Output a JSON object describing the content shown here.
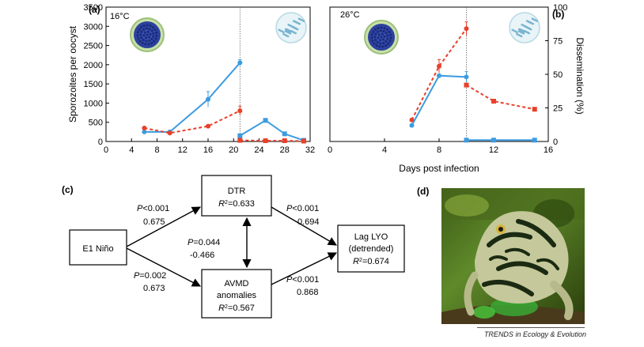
{
  "panel_labels": {
    "a": "(a)",
    "b": "(b)",
    "c": "(c)",
    "d": "(d)"
  },
  "footer": "TRENDS in Ecology & Evolution",
  "chart_data": [
    {
      "type": "line",
      "panel": "a",
      "annotation": "16°C",
      "ylabel": "Sporozoites per oocyst",
      "xlabel": "",
      "xlim": [
        0,
        32
      ],
      "ylim": [
        0,
        3500
      ],
      "xticks": [
        0,
        4,
        8,
        12,
        16,
        20,
        24,
        28,
        32
      ],
      "yticks": [
        0,
        500,
        1000,
        1500,
        2000,
        2500,
        3000,
        3500
      ],
      "vline_x": 21,
      "series": [
        {
          "color": "#3d9be0",
          "dash": false,
          "marker": "circle",
          "x": [
            6,
            10,
            16,
            21
          ],
          "y": [
            250,
            250,
            1100,
            2050
          ],
          "err": [
            0,
            0,
            200,
            80
          ]
        },
        {
          "color": "#3d9be0",
          "dash": false,
          "marker": "square",
          "x": [
            21,
            25,
            28,
            31
          ],
          "y": [
            150,
            550,
            200,
            30
          ],
          "err": [
            0,
            40,
            0,
            0
          ]
        },
        {
          "color": "#e8402b",
          "dash": true,
          "marker": "circle",
          "x": [
            6,
            10,
            16,
            21
          ],
          "y": [
            350,
            220,
            400,
            800
          ],
          "err": [
            0,
            0,
            0,
            120
          ]
        },
        {
          "color": "#e8402b",
          "dash": true,
          "marker": "square",
          "x": [
            21,
            25,
            28,
            31
          ],
          "y": [
            30,
            20,
            20,
            10
          ],
          "err": [
            0,
            0,
            0,
            0
          ]
        }
      ]
    },
    {
      "type": "line",
      "panel": "b",
      "annotation": "26°C",
      "ylabel": "Dissemination (%)",
      "xlabel": "Days post infection",
      "xlim": [
        0,
        16
      ],
      "ylim": [
        0,
        100
      ],
      "xticks": [
        0,
        4,
        8,
        12,
        16
      ],
      "yticks": [
        0,
        25,
        50,
        75,
        100
      ],
      "vline_x": 10,
      "series": [
        {
          "color": "#e8402b",
          "dash": true,
          "marker": "circle",
          "x": [
            6,
            8,
            10
          ],
          "y": [
            16,
            56,
            84
          ],
          "err": [
            0,
            5,
            5
          ]
        },
        {
          "color": "#e8402b",
          "dash": true,
          "marker": "square",
          "x": [
            10,
            12,
            15
          ],
          "y": [
            42,
            30,
            24
          ],
          "err": [
            0,
            0,
            0
          ]
        },
        {
          "color": "#3d9be0",
          "dash": false,
          "marker": "circle",
          "x": [
            6,
            8,
            10
          ],
          "y": [
            12,
            49,
            48
          ],
          "err": [
            0,
            0,
            4
          ]
        },
        {
          "color": "#3d9be0",
          "dash": false,
          "marker": "square",
          "x": [
            10,
            12,
            15
          ],
          "y": [
            1,
            1,
            1
          ],
          "err": [
            0,
            0,
            0
          ]
        }
      ]
    }
  ],
  "diagram": {
    "nodes": {
      "elnino": "E1 Niño",
      "dtr": "DTR",
      "dtr_r2": "=0.633",
      "avmd_line1": "AVMD",
      "avmd_line2": "anomalies",
      "avmd_r2": "=0.567",
      "lag_line1": "Lag LYO",
      "lag_line2": "(detrended)",
      "lag_r2": "=0.674"
    },
    "r2_prefix": "R",
    "r2_sup": "2",
    "p_prefix": "P",
    "edges": {
      "elnino_dtr_p": "<0.001",
      "elnino_dtr_coef": "0.675",
      "elnino_avmd_p": "=0.002",
      "elnino_avmd_coef": "0.673",
      "dtr_avmd_p": "=0.044",
      "dtr_avmd_coef": "-0.466",
      "dtr_lag_p": "<0.001",
      "dtr_lag_coef": "0.694",
      "avmd_lag_p": "<0.001",
      "avmd_lag_coef": "0.868"
    }
  },
  "photo": {
    "subject": "frog-photo"
  }
}
